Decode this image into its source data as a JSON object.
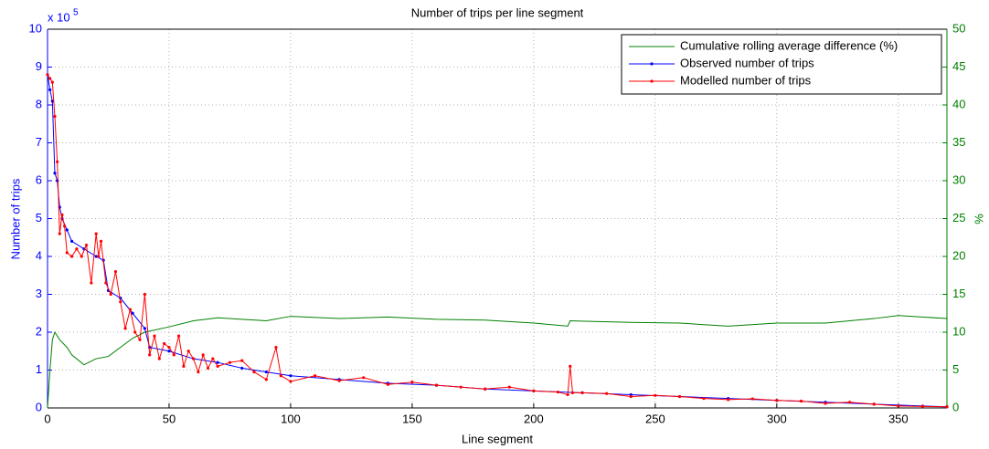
{
  "chart_data": {
    "type": "line",
    "title": "Number of trips per line segment",
    "x_label": "Line segment",
    "y_label": "Number of trips",
    "y2_label": "%",
    "y_multiplier": "x 10",
    "y_multiplier_exponent": "5",
    "xlim": [
      0,
      370
    ],
    "xticks": [
      0,
      50,
      100,
      150,
      200,
      250,
      300,
      350
    ],
    "ylim": [
      0,
      10
    ],
    "yticks": [
      0,
      1,
      2,
      3,
      4,
      5,
      6,
      7,
      8,
      9,
      10
    ],
    "y2lim": [
      0,
      50
    ],
    "y2ticks": [
      0,
      5,
      10,
      15,
      20,
      25,
      30,
      35,
      40,
      45,
      50
    ],
    "grid": true,
    "legend": "top-right",
    "series": [
      {
        "name": "Cumulative rolling average difference (%)",
        "color": "#008000",
        "axis": "y2",
        "markers": false,
        "x": [
          0,
          1,
          2,
          3,
          4,
          5,
          8,
          10,
          15,
          20,
          25,
          30,
          35,
          40,
          50,
          60,
          70,
          80,
          90,
          100,
          120,
          140,
          160,
          180,
          200,
          214,
          215,
          240,
          260,
          280,
          300,
          320,
          340,
          350,
          370
        ],
        "values": [
          0,
          5,
          9,
          10,
          9.5,
          9,
          8,
          7,
          5.7,
          6.5,
          6.8,
          8,
          9.2,
          10,
          10.7,
          11.5,
          11.9,
          11.7,
          11.5,
          12.1,
          11.8,
          12.0,
          11.7,
          11.6,
          11.2,
          10.8,
          11.5,
          11.3,
          11.2,
          10.8,
          11.2,
          11.2,
          11.8,
          12.2,
          11.8
        ]
      },
      {
        "name": "Observed number of trips",
        "color": "#0000ff",
        "axis": "y",
        "markers": true,
        "x": [
          0,
          1,
          2,
          3,
          4,
          5,
          6,
          8,
          10,
          15,
          20,
          23,
          25,
          30,
          35,
          40,
          42,
          50,
          60,
          70,
          80,
          90,
          100,
          120,
          140,
          160,
          180,
          200,
          220,
          240,
          260,
          280,
          300,
          320,
          340,
          360,
          370
        ],
        "values": [
          8.8,
          8.4,
          8.1,
          6.2,
          6.0,
          5.3,
          5.0,
          4.7,
          4.4,
          4.2,
          4.0,
          3.9,
          3.1,
          2.9,
          2.5,
          2.1,
          1.6,
          1.5,
          1.3,
          1.2,
          1.05,
          0.95,
          0.85,
          0.75,
          0.65,
          0.6,
          0.5,
          0.45,
          0.4,
          0.35,
          0.3,
          0.25,
          0.2,
          0.15,
          0.1,
          0.05,
          0.03
        ]
      },
      {
        "name": "Modelled number of trips",
        "color": "#ff0000",
        "axis": "y",
        "markers": true,
        "x": [
          0,
          1,
          2,
          3,
          4,
          5,
          6,
          7,
          8,
          10,
          12,
          14,
          16,
          18,
          20,
          21,
          22,
          24,
          26,
          28,
          30,
          32,
          34,
          36,
          38,
          40,
          42,
          44,
          46,
          48,
          50,
          52,
          54,
          56,
          58,
          60,
          62,
          64,
          66,
          68,
          70,
          75,
          80,
          85,
          90,
          94,
          96,
          100,
          110,
          120,
          130,
          140,
          150,
          160,
          170,
          180,
          190,
          200,
          210,
          214,
          215,
          216,
          220,
          230,
          240,
          250,
          260,
          270,
          280,
          290,
          300,
          310,
          320,
          330,
          340,
          350,
          360,
          370
        ],
        "values": [
          8.8,
          8.7,
          8.6,
          7.7,
          6.5,
          4.6,
          5.1,
          4.8,
          4.1,
          4.0,
          4.2,
          4.0,
          4.3,
          3.3,
          4.6,
          4.0,
          4.4,
          3.3,
          3.0,
          3.6,
          2.8,
          2.1,
          2.6,
          2.0,
          1.8,
          3.0,
          1.4,
          1.9,
          1.3,
          1.7,
          1.6,
          1.4,
          1.9,
          1.1,
          1.5,
          1.3,
          0.95,
          1.4,
          1.05,
          1.3,
          1.1,
          1.2,
          1.25,
          0.95,
          0.75,
          1.6,
          0.85,
          0.7,
          0.85,
          0.72,
          0.8,
          0.62,
          0.68,
          0.6,
          0.55,
          0.5,
          0.55,
          0.45,
          0.42,
          0.35,
          1.1,
          0.4,
          0.4,
          0.38,
          0.3,
          0.33,
          0.3,
          0.25,
          0.22,
          0.24,
          0.2,
          0.18,
          0.12,
          0.15,
          0.1,
          0.05,
          0.04,
          0.03
        ]
      }
    ]
  }
}
